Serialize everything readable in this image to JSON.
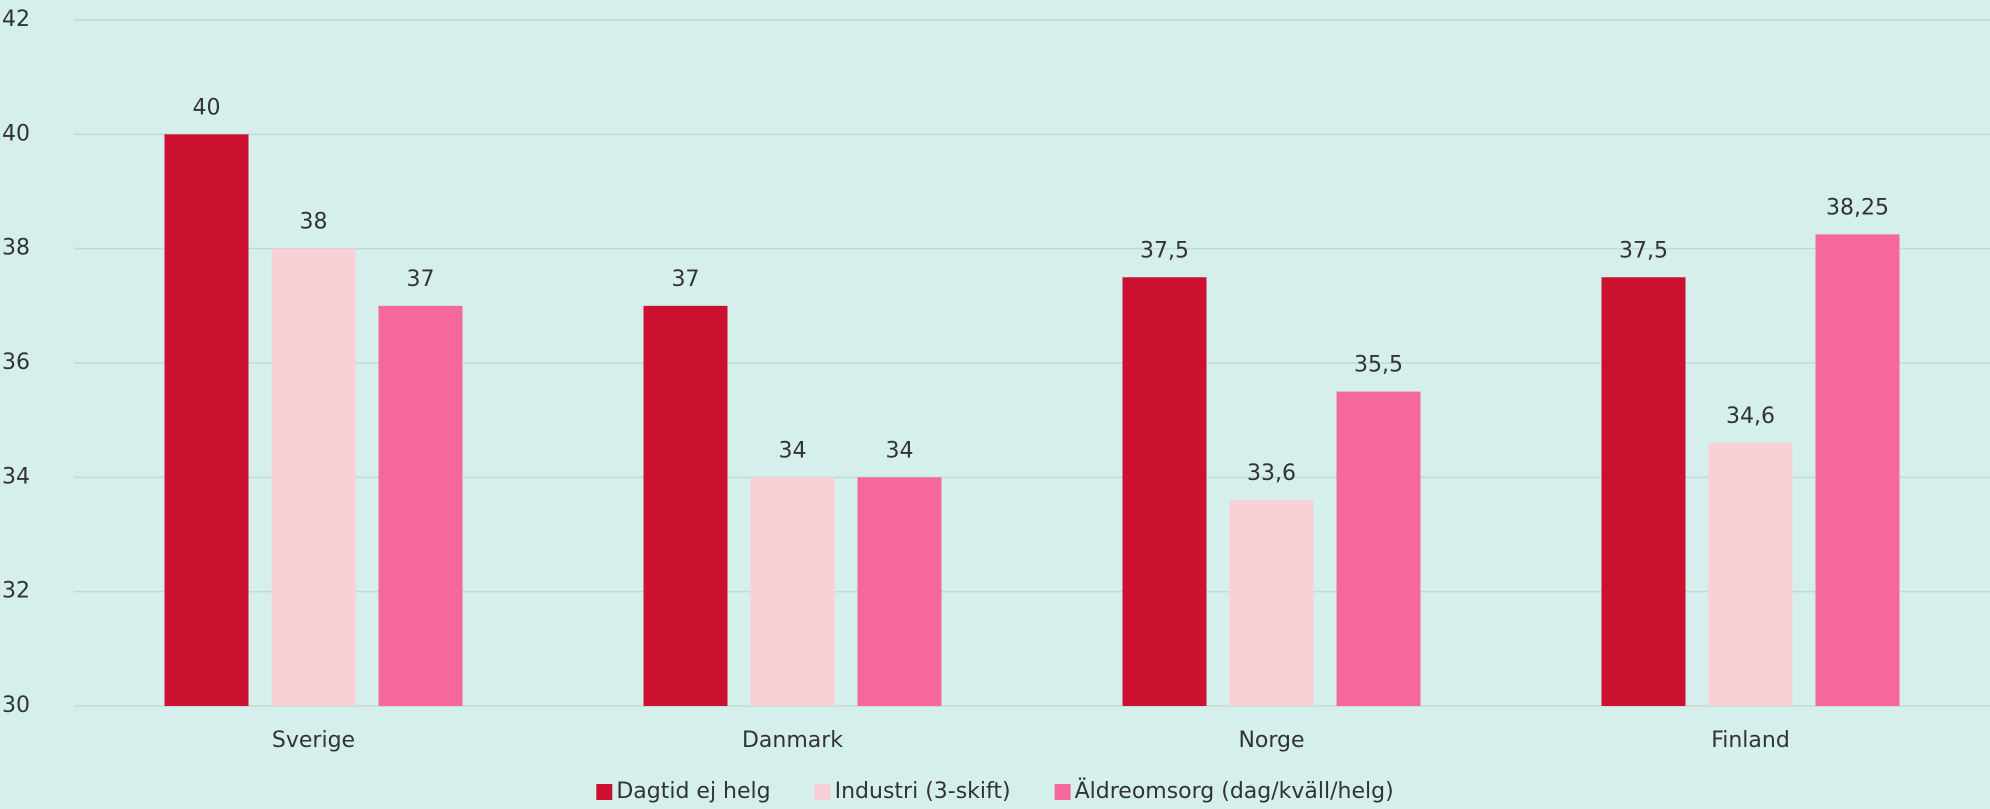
{
  "chart_data": {
    "type": "bar",
    "categories": [
      "Sverige",
      "Danmark",
      "Norge",
      "Finland"
    ],
    "series": [
      {
        "name": "Dagtid ej helg",
        "color": "#cc1030",
        "values": [
          40,
          37,
          37.5,
          37.5
        ],
        "value_labels": [
          "40",
          "37",
          "37,5",
          "37,5"
        ]
      },
      {
        "name": "Industri (3-skift)",
        "color": "#f9d0d6",
        "values": [
          38,
          34,
          33.6,
          34.6
        ],
        "value_labels": [
          "38",
          "34",
          "33,6",
          "34,6"
        ]
      },
      {
        "name": "Äldreomsorg (dag/kväll/helg)",
        "color": "#f5689b",
        "values": [
          37,
          34,
          35.5,
          38.25
        ],
        "value_labels": [
          "37",
          "34",
          "35,5",
          "38,25"
        ]
      }
    ],
    "ylim": [
      30,
      42
    ],
    "yticks": [
      30,
      32,
      34,
      36,
      38,
      40,
      42
    ],
    "grid": true,
    "legend": "bottom"
  }
}
